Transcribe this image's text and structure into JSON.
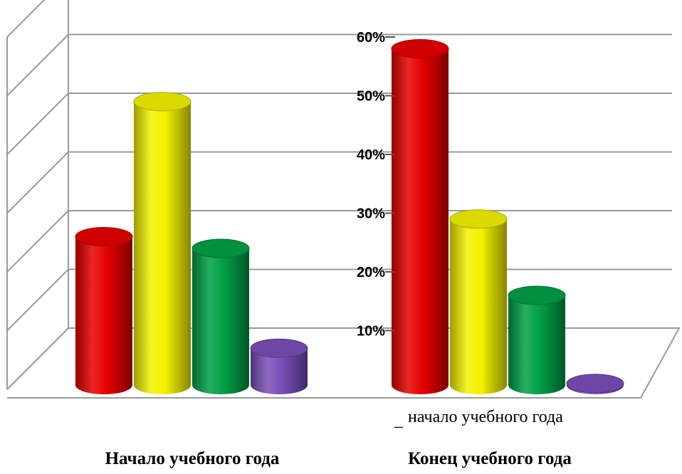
{
  "chart_data": {
    "type": "bar",
    "style": "3d-cylinder",
    "groups": [
      {
        "title": "Начало учебного года",
        "values": [
          26,
          49,
          24,
          7
        ]
      },
      {
        "title": "Конец учебного года",
        "values": [
          58,
          29,
          16,
          1
        ]
      }
    ],
    "bar_colors": [
      "#e60000",
      "#f2f200",
      "#00a046",
      "#7a4fb8"
    ],
    "y_ticks": [
      10,
      20,
      30,
      40,
      50,
      60
    ],
    "y_tick_labels": [
      "10%",
      "20%",
      "30%",
      "40%",
      "50%",
      "60%"
    ],
    "ylim": [
      0,
      65
    ],
    "grid": true,
    "legend": {
      "marker": "_",
      "label": "начало учебного года",
      "placement": "bottom-right"
    }
  }
}
